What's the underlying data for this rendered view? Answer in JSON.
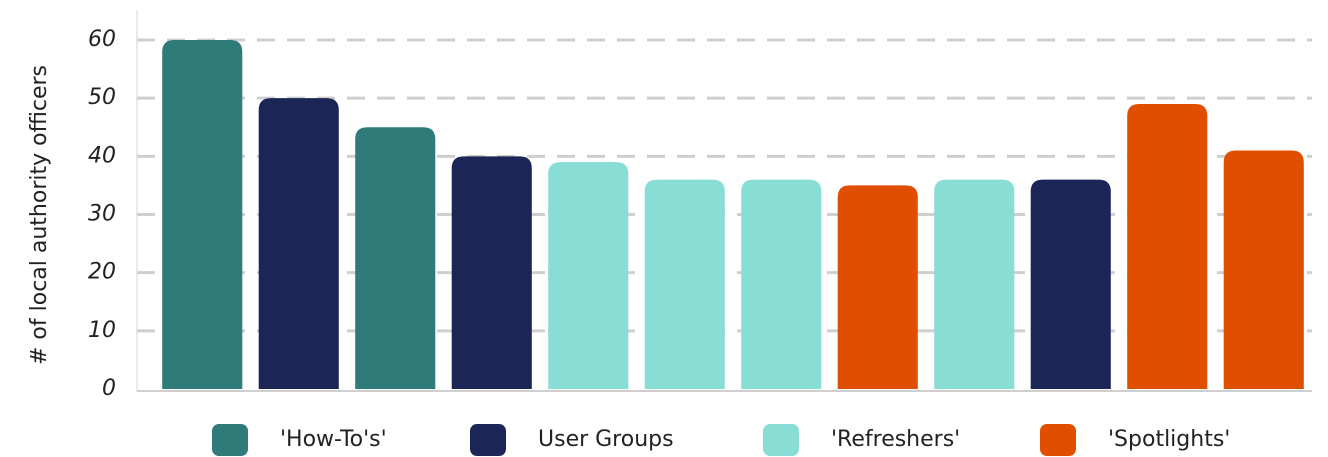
{
  "chart_data": {
    "type": "bar",
    "y_label": "# of local authority officers",
    "categories": [
      null,
      null,
      null,
      null,
      null,
      null,
      null,
      null,
      null,
      null,
      null,
      null
    ],
    "series": [
      {
        "name": "'How-To's'",
        "color": "#2e7b7a",
        "values": [
          60,
          null,
          45,
          null,
          null,
          null,
          null,
          null,
          null,
          null,
          null,
          null
        ]
      },
      {
        "name": "User Groups",
        "color": "#1b2656",
        "values": [
          null,
          50,
          null,
          40,
          null,
          null,
          null,
          null,
          null,
          36,
          null,
          null
        ]
      },
      {
        "name": "'Refreshers'",
        "color": "#88ddd5",
        "values": [
          null,
          null,
          null,
          null,
          39,
          36,
          36,
          null,
          36,
          null,
          null,
          null
        ]
      },
      {
        "name": "'Spotlights'",
        "color": "#e04e00",
        "values": [
          null,
          null,
          null,
          null,
          null,
          null,
          null,
          35,
          null,
          null,
          49,
          41
        ]
      }
    ],
    "ylim": [
      0,
      60
    ],
    "yticks": [
      0,
      10,
      20,
      30,
      40,
      50,
      60
    ],
    "grid": true,
    "legend": "bottom"
  }
}
